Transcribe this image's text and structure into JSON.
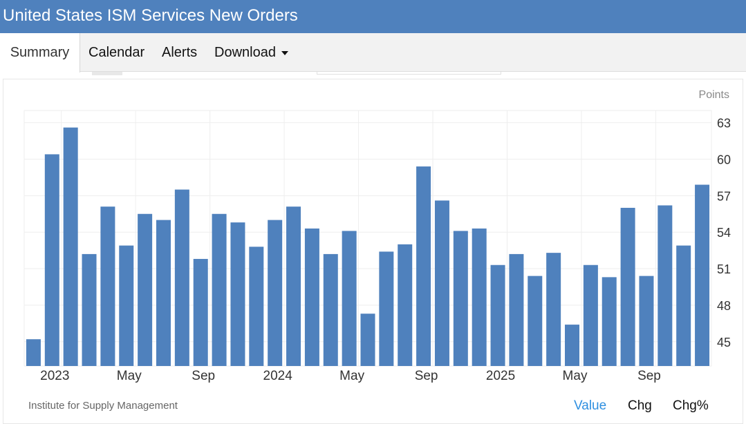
{
  "title": "United States ISM Services New Orders",
  "tabs": {
    "summary": "Summary",
    "calendar": "Calendar",
    "alerts": "Alerts",
    "download": "Download"
  },
  "footer": {
    "source": "Institute for Supply Management",
    "value_label": "Value",
    "chg_label": "Chg",
    "chgpct_label": "Chg%"
  },
  "colors": {
    "header": "#4f81bd",
    "bar": "#4f81bd",
    "active_footer": "#2e8fe0"
  },
  "chart_data": {
    "type": "bar",
    "unit_label": "Points",
    "categories": [
      "Dec 2022",
      "Jan 2023",
      "Feb 2023",
      "Mar 2023",
      "Apr 2023",
      "May 2023",
      "Jun 2023",
      "Jul 2023",
      "Aug 2023",
      "Sep 2023",
      "Oct 2023",
      "Nov 2023",
      "Dec 2023",
      "Jan 2024",
      "Feb 2024",
      "Mar 2024",
      "Apr 2024",
      "May 2024",
      "Jun 2024",
      "Jul 2024",
      "Aug 2024",
      "Sep 2024",
      "Oct 2024",
      "Nov 2024",
      "Dec 2024",
      "Jan 2025",
      "Feb 2025",
      "Mar 2025",
      "Apr 2025",
      "May 2025",
      "Jun 2025",
      "Jul 2025",
      "Aug 2025",
      "Sep 2025",
      "Oct 2025",
      "Nov 2025",
      "Dec 2025"
    ],
    "values": [
      45.2,
      60.4,
      62.6,
      52.2,
      56.1,
      52.9,
      55.5,
      55.0,
      57.5,
      51.8,
      55.5,
      54.8,
      52.8,
      55.0,
      56.1,
      54.3,
      52.2,
      54.1,
      47.3,
      52.4,
      53.0,
      59.4,
      56.6,
      54.1,
      54.3,
      51.3,
      52.2,
      50.4,
      52.3,
      46.4,
      51.3,
      50.3,
      56.0,
      50.4,
      56.2,
      52.9,
      57.9
    ],
    "x_tick_labels": [
      {
        "label": "2023",
        "index": 1
      },
      {
        "label": "May",
        "index": 5
      },
      {
        "label": "Sep",
        "index": 9
      },
      {
        "label": "2024",
        "index": 13
      },
      {
        "label": "May",
        "index": 17
      },
      {
        "label": "Sep",
        "index": 21
      },
      {
        "label": "2025",
        "index": 25
      },
      {
        "label": "May",
        "index": 29
      },
      {
        "label": "Sep",
        "index": 33
      }
    ],
    "y_ticks": [
      45,
      48,
      51,
      54,
      57,
      60,
      63
    ],
    "ylim": [
      43,
      64
    ],
    "y_axis_side": "right",
    "grid": true
  }
}
